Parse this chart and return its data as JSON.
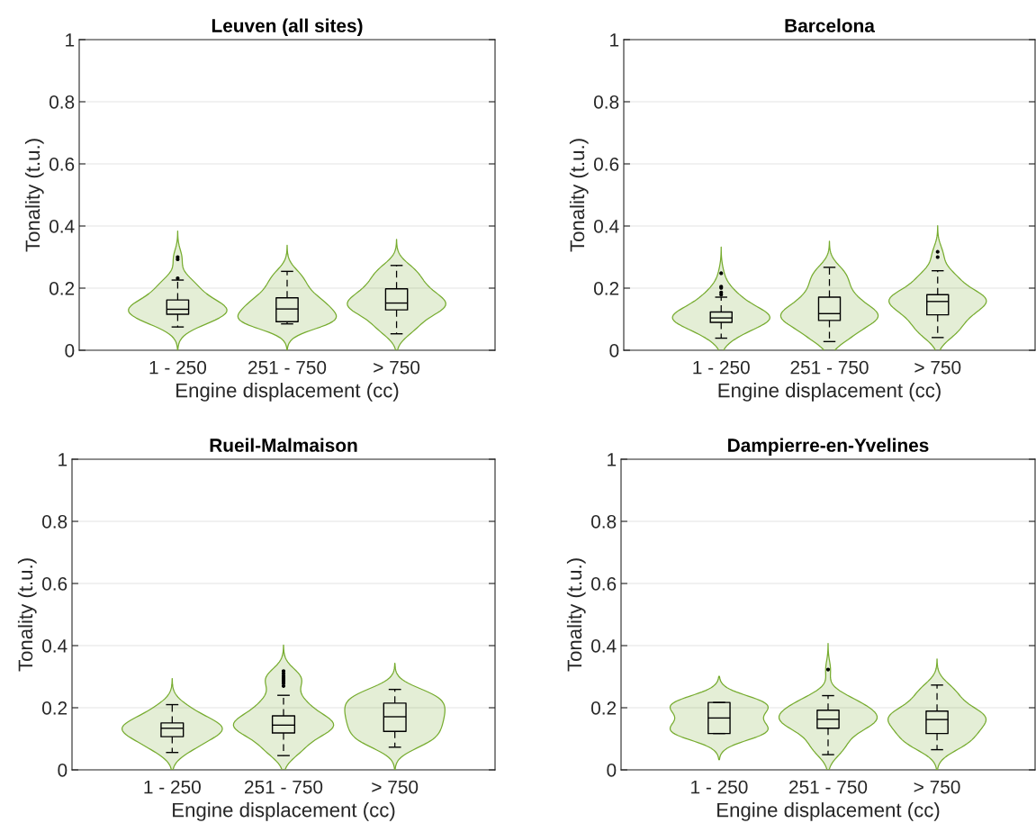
{
  "chart_data": [
    {
      "type": "box",
      "title": "Leuven (all sites)",
      "xlabel": "Engine displacement (cc)",
      "ylabel": "Tonality (t.u.)",
      "categories": [
        "1 - 250",
        "251 - 750",
        "> 750"
      ],
      "ylim": [
        0,
        1
      ],
      "yticks": [
        0,
        0.2,
        0.4,
        0.6,
        0.8,
        1
      ],
      "grid": "y",
      "boxes": [
        {
          "low": 0.075,
          "q1": 0.116,
          "median": 0.132,
          "q3": 0.162,
          "high": 0.226,
          "outliers": [
            0.232,
            0.293,
            0.3
          ]
        },
        {
          "low": 0.085,
          "q1": 0.092,
          "median": 0.133,
          "q3": 0.169,
          "high": 0.254
        },
        {
          "low": 0.053,
          "q1": 0.13,
          "median": 0.152,
          "q3": 0.198,
          "high": 0.273
        }
      ]
    },
    {
      "type": "box",
      "title": "Barcelona",
      "xlabel": "Engine displacement (cc)",
      "ylabel": "Tonality (t.u.)",
      "categories": [
        "1 - 250",
        "251 - 750",
        "> 750"
      ],
      "ylim": [
        0,
        1
      ],
      "yticks": [
        0,
        0.2,
        0.4,
        0.6,
        0.8,
        1
      ],
      "grid": "y",
      "boxes": [
        {
          "low": 0.039,
          "q1": 0.09,
          "median": 0.104,
          "q3": 0.123,
          "high": 0.171,
          "outliers": [
            0.179,
            0.186,
            0.201,
            0.205,
            0.248
          ]
        },
        {
          "low": 0.028,
          "q1": 0.096,
          "median": 0.118,
          "q3": 0.171,
          "high": 0.267
        },
        {
          "low": 0.041,
          "q1": 0.114,
          "median": 0.157,
          "q3": 0.179,
          "high": 0.256,
          "outliers": [
            0.3,
            0.317
          ]
        }
      ]
    },
    {
      "type": "box",
      "title": "Rueil-Malmaison",
      "xlabel": "Engine displacement (cc)",
      "ylabel": "Tonality (t.u.)",
      "categories": [
        "1 - 250",
        "251 - 750",
        "> 750"
      ],
      "ylim": [
        0,
        1
      ],
      "yticks": [
        0,
        0.2,
        0.4,
        0.6,
        0.8,
        1
      ],
      "grid": "y",
      "boxes": [
        {
          "low": 0.056,
          "q1": 0.107,
          "median": 0.134,
          "q3": 0.151,
          "high": 0.21
        },
        {
          "low": 0.046,
          "q1": 0.119,
          "median": 0.144,
          "q3": 0.174,
          "high": 0.24,
          "outliers": [
            0.27,
            0.278,
            0.285,
            0.29,
            0.296,
            0.302,
            0.31,
            0.318
          ]
        },
        {
          "low": 0.073,
          "q1": 0.124,
          "median": 0.171,
          "q3": 0.215,
          "high": 0.259
        }
      ]
    },
    {
      "type": "box",
      "title": "Dampierre-en-Yvelines",
      "xlabel": "Engine displacement (cc)",
      "ylabel": "Tonality (t.u.)",
      "categories": [
        "1 - 250",
        "251 - 750",
        "> 750"
      ],
      "ylim": [
        0,
        1
      ],
      "yticks": [
        0,
        0.2,
        0.4,
        0.6,
        0.8,
        1
      ],
      "grid": "y",
      "boxes": [
        {
          "low": 0.117,
          "q1": 0.117,
          "median": 0.167,
          "q3": 0.217,
          "high": 0.217
        },
        {
          "low": 0.049,
          "q1": 0.134,
          "median": 0.163,
          "q3": 0.192,
          "high": 0.239,
          "outliers": [
            0.323
          ]
        },
        {
          "low": 0.065,
          "q1": 0.117,
          "median": 0.162,
          "q3": 0.189,
          "high": 0.273
        }
      ]
    }
  ]
}
